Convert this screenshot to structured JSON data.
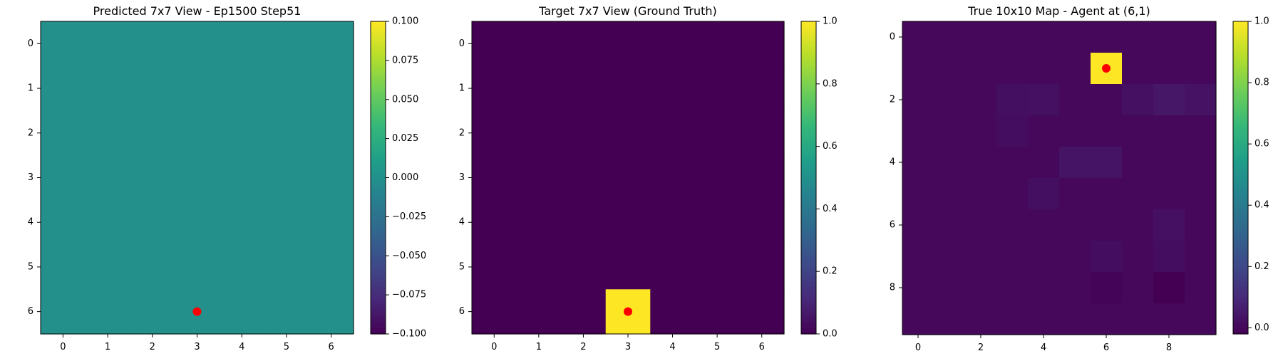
{
  "chart_data": [
    {
      "type": "heatmap",
      "title": "Predicted 7x7 View - Ep1500 Step51",
      "rows": 7,
      "cols": 7,
      "x_ticks": [
        0,
        1,
        2,
        3,
        4,
        5,
        6
      ],
      "y_ticks": [
        0,
        1,
        2,
        3,
        4,
        5,
        6
      ],
      "values": [
        [
          0,
          0,
          0,
          0,
          0,
          0,
          0
        ],
        [
          0,
          0,
          0,
          0,
          0,
          0,
          0
        ],
        [
          0,
          0,
          0,
          0,
          0,
          0,
          0
        ],
        [
          0,
          0,
          0,
          0,
          0,
          0,
          0
        ],
        [
          0,
          0,
          0,
          0,
          0,
          0,
          0
        ],
        [
          0,
          0,
          0,
          0,
          0,
          0,
          0
        ],
        [
          0,
          0,
          0,
          0,
          0,
          0,
          0
        ]
      ],
      "vmin": -0.1,
      "vmax": 0.1,
      "colorbar_ticks": [
        -0.1,
        -0.075,
        -0.05,
        -0.025,
        0.0,
        0.025,
        0.05,
        0.075,
        0.1
      ],
      "colorbar_labels": [
        "−0.100",
        "−0.075",
        "−0.050",
        "−0.025",
        "0.000",
        "0.025",
        "0.050",
        "0.075",
        "0.100"
      ],
      "colormap": "viridis",
      "marker": {
        "x": 3,
        "y": 6,
        "color": "#ff0000"
      }
    },
    {
      "type": "heatmap",
      "title": "Target 7x7 View (Ground Truth)",
      "rows": 7,
      "cols": 7,
      "x_ticks": [
        0,
        1,
        2,
        3,
        4,
        5,
        6
      ],
      "y_ticks": [
        0,
        1,
        2,
        3,
        4,
        5,
        6
      ],
      "values": [
        [
          0,
          0,
          0,
          0,
          0,
          0,
          0
        ],
        [
          0,
          0,
          0,
          0,
          0,
          0,
          0
        ],
        [
          0,
          0,
          0,
          0,
          0,
          0,
          0
        ],
        [
          0,
          0,
          0,
          0,
          0,
          0,
          0
        ],
        [
          0,
          0,
          0,
          0,
          0,
          0,
          0
        ],
        [
          0,
          0,
          0,
          0,
          0,
          0,
          0
        ],
        [
          0,
          0,
          0,
          1,
          0,
          0,
          0
        ]
      ],
      "vmin": 0.0,
      "vmax": 1.0,
      "colorbar_ticks": [
        0.0,
        0.2,
        0.4,
        0.6,
        0.8,
        1.0
      ],
      "colorbar_labels": [
        "0.0",
        "0.2",
        "0.4",
        "0.6",
        "0.8",
        "1.0"
      ],
      "colormap": "viridis",
      "marker": {
        "x": 3,
        "y": 6,
        "color": "#ff0000"
      }
    },
    {
      "type": "heatmap",
      "title": "True 10x10 Map - Agent at (6,1)",
      "rows": 10,
      "cols": 10,
      "x_ticks": [
        0,
        2,
        4,
        6,
        8
      ],
      "y_ticks": [
        0,
        2,
        4,
        6,
        8
      ],
      "values": [
        [
          0,
          0,
          0,
          0,
          0,
          0,
          0,
          0,
          0,
          0
        ],
        [
          0,
          0,
          0,
          0,
          0,
          0,
          1,
          0,
          0,
          0
        ],
        [
          0,
          0,
          0,
          0.02,
          0.025,
          0,
          0,
          0.025,
          0.04,
          0.03
        ],
        [
          0,
          0,
          0,
          0.015,
          0,
          0,
          0,
          0,
          0,
          0
        ],
        [
          0,
          0,
          0,
          0,
          0,
          0.035,
          0.035,
          0,
          0,
          0
        ],
        [
          0,
          0,
          0,
          0,
          0.02,
          0,
          0,
          0,
          0,
          0
        ],
        [
          0,
          0,
          0,
          0,
          0,
          0,
          0,
          0,
          0.025,
          0
        ],
        [
          0,
          0,
          0,
          0,
          0,
          0,
          0.015,
          0,
          0.015,
          0
        ],
        [
          0,
          0,
          0,
          0,
          0,
          0,
          -0.01,
          0,
          -0.02,
          0
        ],
        [
          0,
          0,
          0,
          0,
          0,
          0,
          0,
          0,
          0,
          0
        ]
      ],
      "vmin": -0.02,
      "vmax": 1.0,
      "colorbar_ticks": [
        0.0,
        0.2,
        0.4,
        0.6,
        0.8,
        1.0
      ],
      "colorbar_labels": [
        "0.0",
        "0.2",
        "0.4",
        "0.6",
        "0.8",
        "1.0"
      ],
      "colormap": "viridis",
      "marker": {
        "x": 6,
        "y": 1,
        "color": "#ff0000"
      }
    }
  ]
}
